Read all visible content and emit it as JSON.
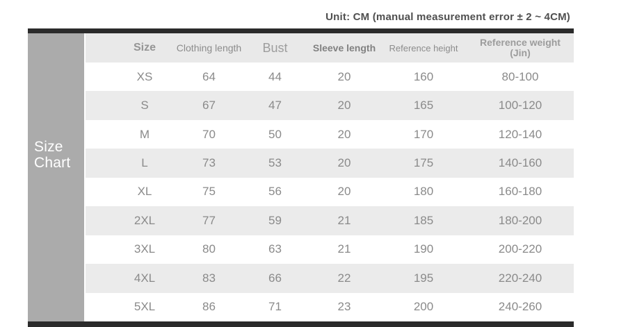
{
  "unit_note": "Unit: CM (manual measurement error ± 2 ~ 4CM)",
  "side_label": {
    "line1": "Size",
    "line2": "Chart"
  },
  "table_ui": {
    "headers": {
      "size": "Size",
      "clothing_length": "Clothing length",
      "bust": "Bust",
      "sleeve_length": "Sleeve length",
      "reference_height": "Reference height",
      "reference_weight_line1": "Reference weight",
      "reference_weight_line2": "(Jin)"
    }
  },
  "chart_data": {
    "type": "table",
    "title": "Unit: CM (manual measurement error ± 2 ~ 4CM)",
    "columns": [
      "Size",
      "Clothing length",
      "Bust",
      "Sleeve length",
      "Reference height",
      "Reference weight (Jin)"
    ],
    "rows": [
      [
        "XS",
        64,
        44,
        20,
        160,
        "80-100"
      ],
      [
        "S",
        67,
        47,
        20,
        165,
        "100-120"
      ],
      [
        "M",
        70,
        50,
        20,
        170,
        "120-140"
      ],
      [
        "L",
        73,
        53,
        20,
        175,
        "140-160"
      ],
      [
        "XL",
        75,
        56,
        20,
        180,
        "160-180"
      ],
      [
        "2XL",
        77,
        59,
        21,
        185,
        "180-200"
      ],
      [
        "3XL",
        80,
        63,
        21,
        190,
        "200-220"
      ],
      [
        "4XL",
        83,
        66,
        22,
        195,
        "220-240"
      ],
      [
        "5XL",
        86,
        71,
        23,
        200,
        "240-260"
      ]
    ]
  },
  "colors": {
    "border_bar": "#2b2b2b",
    "side_label_bg": "#ababab",
    "side_label_text": "#ffffff",
    "header_bg": "#e9e9e9",
    "stripe_bg": "#ebebeb",
    "text_muted": "#8a8a8a",
    "unit_text": "#4f4f4f"
  }
}
